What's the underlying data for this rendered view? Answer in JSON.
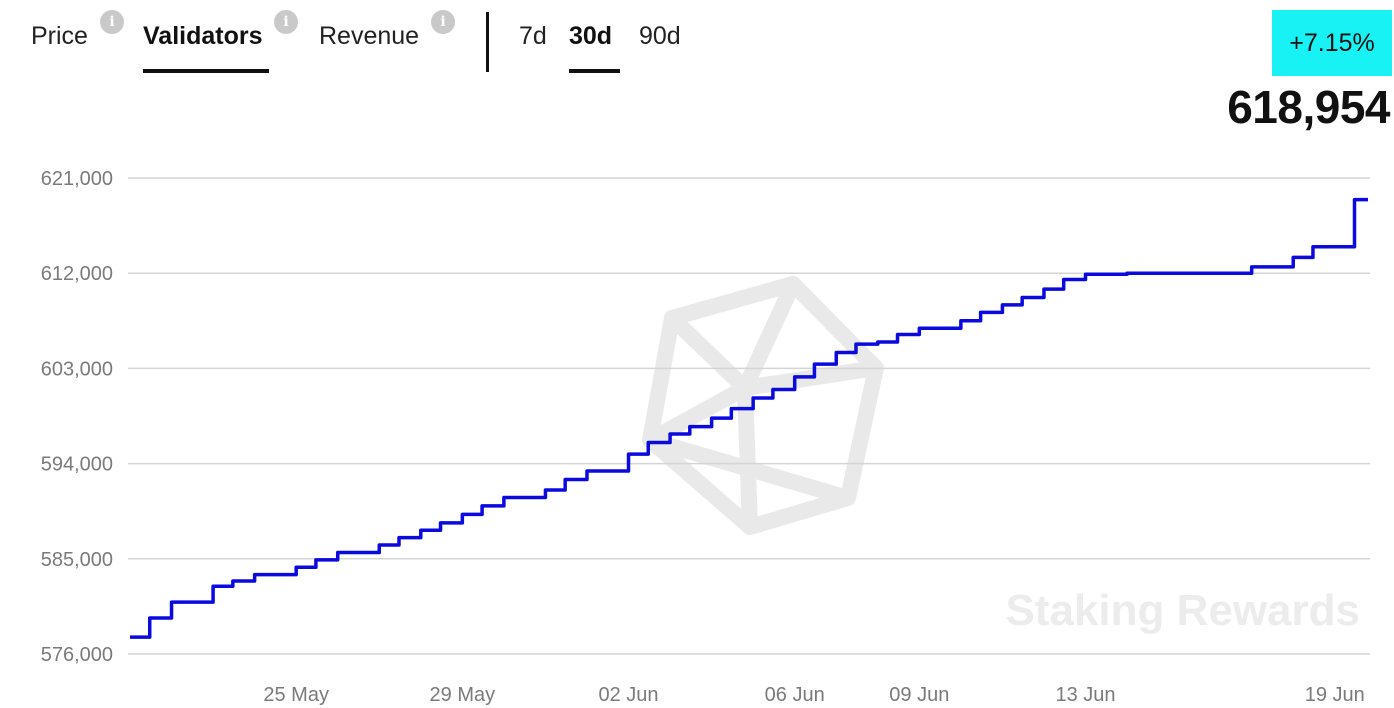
{
  "tabs": [
    {
      "label": "Price",
      "active": false
    },
    {
      "label": "Validators",
      "active": true
    },
    {
      "label": "Revenue",
      "active": false
    }
  ],
  "info_icon_glyph": "i",
  "ranges": [
    {
      "label": "7d",
      "active": false
    },
    {
      "label": "30d",
      "active": true
    },
    {
      "label": "90d",
      "active": false
    }
  ],
  "change_badge": {
    "text": "+7.15%",
    "color": "#19f2f4"
  },
  "current_value": "618,954",
  "watermark": "Staking Rewards",
  "line_color": "#0a0adf",
  "chart_data": {
    "type": "line",
    "title": "",
    "xlabel": "",
    "ylabel": "",
    "ylim": [
      576000,
      621000
    ],
    "y_ticks": [
      576000,
      585000,
      594000,
      603000,
      612000,
      621000
    ],
    "y_tick_labels": [
      "576,000",
      "585,000",
      "594,000",
      "603,000",
      "612,000",
      "621,000"
    ],
    "x_tick_labels": [
      "25 May",
      "29 May",
      "02 Jun",
      "06 Jun",
      "09 Jun",
      "13 Jun",
      "19 Jun"
    ],
    "grid": true,
    "series": [
      {
        "points": [
          [
            "21 May",
            577600
          ],
          [
            "21 May",
            579400
          ],
          [
            "22 May",
            580900
          ],
          [
            "23 May",
            582400
          ],
          [
            "23 May",
            582900
          ],
          [
            "24 May",
            583500
          ],
          [
            "25 May",
            584200
          ],
          [
            "25 May",
            584900
          ],
          [
            "26 May",
            585600
          ],
          [
            "27 May",
            586300
          ],
          [
            "27 May",
            587000
          ],
          [
            "28 May",
            587700
          ],
          [
            "28 May",
            588400
          ],
          [
            "29 May",
            589200
          ],
          [
            "29 May",
            590000
          ],
          [
            "30 May",
            590800
          ],
          [
            "31 May",
            591500
          ],
          [
            "31 May",
            592500
          ],
          [
            "01 Jun",
            593300
          ],
          [
            "02 Jun",
            594900
          ],
          [
            "02 Jun",
            596000
          ],
          [
            "03 Jun",
            596800
          ],
          [
            "03 Jun",
            597500
          ],
          [
            "04 Jun",
            598300
          ],
          [
            "04 Jun",
            599200
          ],
          [
            "05 Jun",
            600200
          ],
          [
            "05 Jun",
            601000
          ],
          [
            "06 Jun",
            602200
          ],
          [
            "06 Jun",
            603400
          ],
          [
            "07 Jun",
            604500
          ],
          [
            "07 Jun",
            605300
          ],
          [
            "08 Jun",
            605500
          ],
          [
            "08 Jun",
            606200
          ],
          [
            "09 Jun",
            606800
          ],
          [
            "10 Jun",
            607500
          ],
          [
            "10 Jun",
            608300
          ],
          [
            "11 Jun",
            609000
          ],
          [
            "11 Jun",
            609700
          ],
          [
            "12 Jun",
            610500
          ],
          [
            "12 Jun",
            611400
          ],
          [
            "13 Jun",
            611900
          ],
          [
            "14 Jun",
            612000
          ],
          [
            "16 Jun",
            612000
          ],
          [
            "17 Jun",
            612600
          ],
          [
            "18 Jun",
            613500
          ],
          [
            "18 Jun",
            614500
          ],
          [
            "19 Jun",
            614500
          ],
          [
            "19 Jun",
            618954
          ]
        ]
      }
    ]
  }
}
